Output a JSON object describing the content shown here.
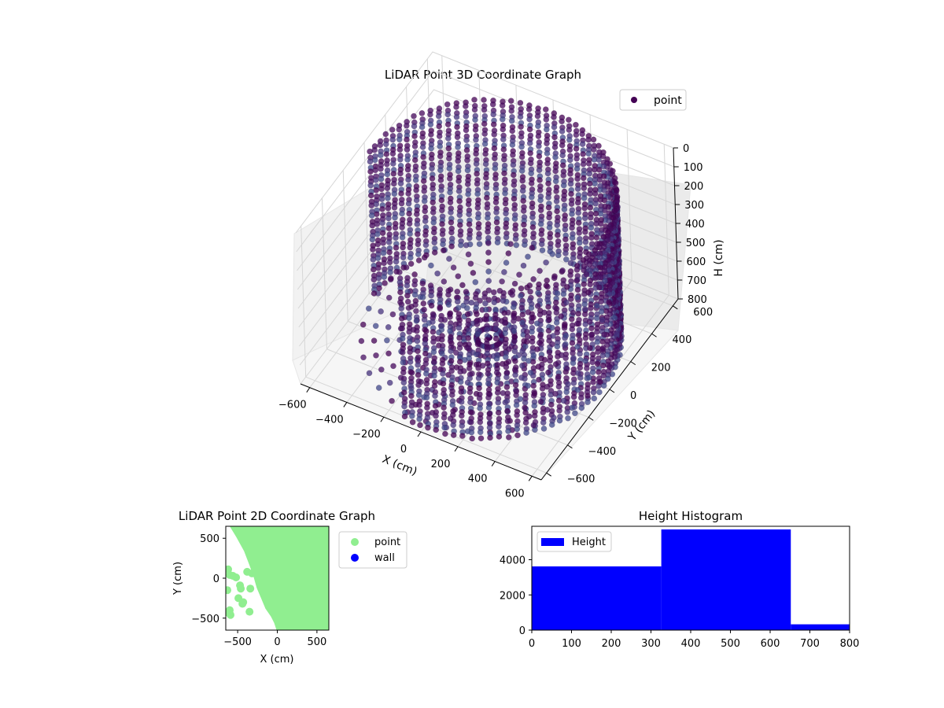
{
  "chart_data": [
    {
      "type": "scatter",
      "projection": "3d",
      "title": "LiDAR Point 3D Coordinate Graph",
      "xlabel": "X (cm)",
      "ylabel": "Y (cm)",
      "zlabel": "H (cm)",
      "xlim": [
        -650,
        650
      ],
      "ylim": [
        -650,
        650
      ],
      "zlim": [
        800,
        0
      ],
      "x_ticks": [
        "−600",
        "−400",
        "−200",
        "0",
        "200",
        "400",
        "600"
      ],
      "y_ticks": [
        "−600",
        "−400",
        "−200",
        "0",
        "200",
        "400",
        "600"
      ],
      "z_ticks": [
        "0",
        "100",
        "200",
        "300",
        "400",
        "500",
        "600",
        "700",
        "800"
      ],
      "z_tick_values": [
        0,
        100,
        200,
        300,
        400,
        500,
        600,
        700,
        800
      ],
      "x_tick_values": [
        -600,
        -400,
        -200,
        0,
        200,
        400,
        600
      ],
      "y_tick_values": [
        -600,
        -400,
        -200,
        0,
        200,
        400,
        600
      ],
      "colormap": "viridis",
      "marker_color": "#440154",
      "grid": true,
      "legend": {
        "location": "upper right",
        "entries": [
          "point"
        ]
      },
      "series": [
        {
          "name": "point",
          "shape": "cylindrical wall scan",
          "wall_radius_cm": 620,
          "wall_arc_deg": [
            -100,
            180
          ],
          "height_range_cm": [
            0,
            800
          ]
        }
      ]
    },
    {
      "type": "scatter",
      "title": "LiDAR Point 2D Coordinate Graph",
      "xlabel": "X (cm)",
      "ylabel": "Y (cm)",
      "xlim": [
        -650,
        650
      ],
      "ylim": [
        -650,
        650
      ],
      "x_ticks": [
        "−500",
        "0",
        "500"
      ],
      "x_tick_values": [
        -500,
        0,
        500
      ],
      "y_ticks": [
        "−500",
        "0",
        "500"
      ],
      "y_tick_values": [
        -500,
        0,
        500
      ],
      "legend": {
        "location": "outside right",
        "entries": [
          "point",
          "wall"
        ]
      },
      "series": [
        {
          "name": "point",
          "color": "#90ee90"
        },
        {
          "name": "wall",
          "color": "#0000ff"
        }
      ],
      "outlier_points": [
        [
          -620,
          110
        ],
        [
          -600,
          40
        ],
        [
          -560,
          30
        ],
        [
          -520,
          10
        ],
        [
          -460,
          -130
        ],
        [
          -490,
          -250
        ],
        [
          -430,
          -300
        ],
        [
          -440,
          -320
        ],
        [
          -350,
          -420
        ],
        [
          -620,
          -430
        ],
        [
          -590,
          -460
        ],
        [
          -630,
          -150
        ],
        [
          -380,
          80
        ],
        [
          -340,
          -130
        ],
        [
          -320,
          60
        ],
        [
          -470,
          -90
        ],
        [
          -600,
          -400
        ]
      ]
    },
    {
      "type": "bar",
      "title": "Height Histogram",
      "xlabel": "",
      "ylabel": "",
      "xlim": [
        0,
        800
      ],
      "ylim": [
        0,
        5900
      ],
      "x_ticks": [
        "0",
        "100",
        "200",
        "300",
        "400",
        "500",
        "600",
        "700",
        "800"
      ],
      "x_tick_values": [
        0,
        100,
        200,
        300,
        400,
        500,
        600,
        700,
        800
      ],
      "y_ticks": [
        "0",
        "2000",
        "4000"
      ],
      "y_tick_values": [
        0,
        2000,
        4000
      ],
      "legend": {
        "location": "upper left",
        "entries": [
          "Height"
        ]
      },
      "series": [
        {
          "name": "Height",
          "color": "#0000ff",
          "bins": [
            {
              "from": 0,
              "to": 326,
              "count": 3620
            },
            {
              "from": 326,
              "to": 652,
              "count": 5720
            },
            {
              "from": 652,
              "to": 800,
              "count": 330
            }
          ]
        }
      ]
    }
  ]
}
